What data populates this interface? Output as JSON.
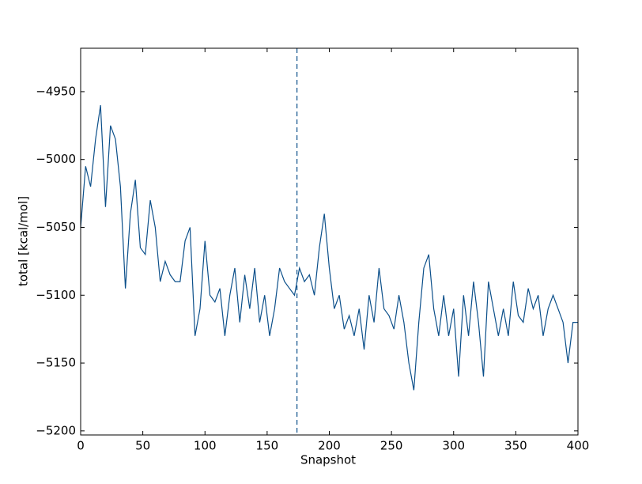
{
  "chart_data": {
    "type": "line",
    "xlabel": "Snapshot",
    "ylabel": "total [kcal/mol]",
    "x": [
      0,
      4,
      8,
      12,
      16,
      20,
      24,
      28,
      32,
      36,
      40,
      44,
      48,
      52,
      56,
      60,
      64,
      68,
      72,
      76,
      80,
      84,
      88,
      92,
      96,
      100,
      104,
      108,
      112,
      116,
      120,
      124,
      128,
      132,
      136,
      140,
      144,
      148,
      152,
      156,
      160,
      164,
      168,
      172,
      176,
      180,
      184,
      188,
      192,
      196,
      200,
      204,
      208,
      212,
      216,
      220,
      224,
      228,
      232,
      236,
      240,
      244,
      248,
      252,
      256,
      260,
      264,
      268,
      272,
      276,
      280,
      284,
      288,
      292,
      296,
      300,
      304,
      308,
      312,
      316,
      320,
      324,
      328,
      332,
      336,
      340,
      344,
      348,
      352,
      356,
      360,
      364,
      368,
      372,
      376,
      380,
      384,
      388,
      392,
      396,
      400
    ],
    "series": [
      {
        "name": "total",
        "color": "#0b4f8a",
        "values": [
          -5050,
          -5005,
          -5020,
          -4985,
          -4960,
          -5035,
          -4975,
          -4985,
          -5020,
          -5095,
          -5040,
          -5015,
          -5065,
          -5070,
          -5030,
          -5050,
          -5090,
          -5075,
          -5085,
          -5090,
          -5090,
          -5060,
          -5050,
          -5130,
          -5110,
          -5060,
          -5100,
          -5105,
          -5095,
          -5130,
          -5100,
          -5080,
          -5120,
          -5085,
          -5110,
          -5080,
          -5120,
          -5100,
          -5130,
          -5110,
          -5080,
          -5090,
          -5095,
          -5100,
          -5080,
          -5090,
          -5085,
          -5100,
          -5065,
          -5040,
          -5080,
          -5110,
          -5100,
          -5125,
          -5115,
          -5130,
          -5110,
          -5140,
          -5100,
          -5120,
          -5080,
          -5110,
          -5115,
          -5125,
          -5100,
          -5120,
          -5150,
          -5170,
          -5120,
          -5080,
          -5070,
          -5110,
          -5130,
          -5100,
          -5130,
          -5110,
          -5160,
          -5100,
          -5130,
          -5090,
          -5120,
          -5160,
          -5090,
          -5110,
          -5130,
          -5110,
          -5130,
          -5090,
          -5115,
          -5120,
          -5095,
          -5110,
          -5100,
          -5130,
          -5110,
          -5100,
          -5110,
          -5120,
          -5150,
          -5120,
          -5120
        ]
      }
    ],
    "vline_x": 174,
    "vline_color": "#0b4f8a",
    "xlim": [
      0,
      400
    ],
    "xticks": [
      0,
      50,
      100,
      150,
      200,
      250,
      300,
      350,
      400
    ],
    "ylim": [
      -5203,
      -4918
    ],
    "yticks": [
      {
        "value": -5200,
        "label": "−5200"
      },
      {
        "value": -5150,
        "label": "−5150"
      },
      {
        "value": -5100,
        "label": "−5100"
      },
      {
        "value": -5050,
        "label": "−5050"
      },
      {
        "value": -5000,
        "label": "−5000"
      },
      {
        "value": -4950,
        "label": "−4950"
      }
    ],
    "grid": false
  }
}
